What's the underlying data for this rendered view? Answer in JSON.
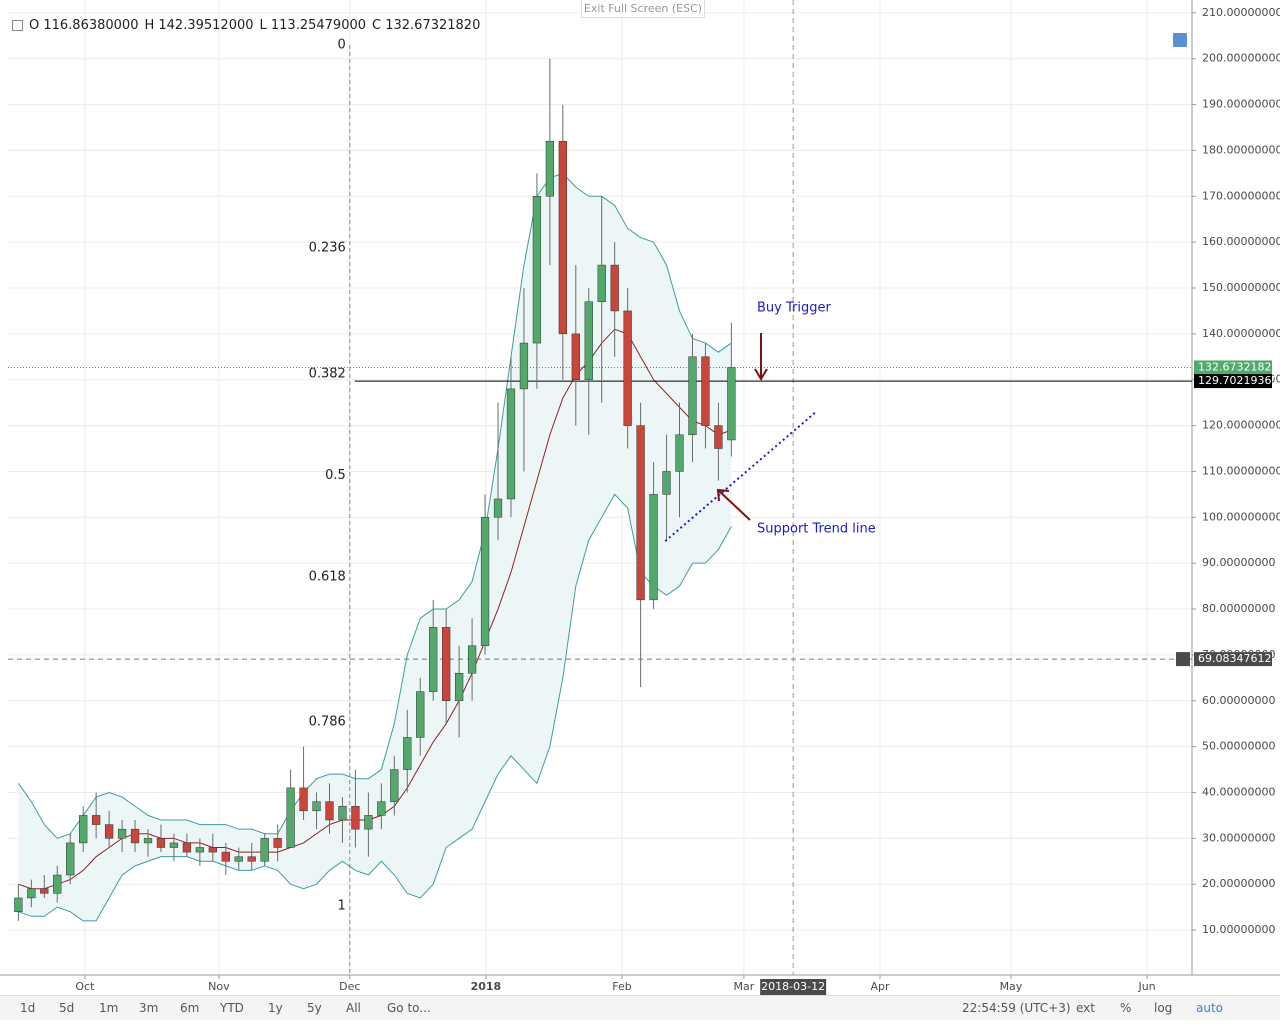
{
  "ui": {
    "exit_fullscreen": "Exit Full Screen (ESC)",
    "ranges": [
      "1d",
      "5d",
      "1m",
      "3m",
      "6m",
      "YTD",
      "1y",
      "5y",
      "All"
    ],
    "goto": "Go to...",
    "time": "22:54:59 (UTC+3)",
    "options": [
      "ext",
      "%",
      "log",
      "auto"
    ]
  },
  "chart_data": {
    "type": "candlestick",
    "header": [
      "O 116.86380000",
      "H 142.39512000",
      "L 113.25479000",
      "C 132.67321820"
    ],
    "x": [
      2.4,
      5.4,
      8.4,
      11.4,
      14.4,
      17.4,
      20.4,
      23.4,
      26.4,
      29.4,
      32.4,
      35.4,
      38.4,
      41.4,
      44.4,
      47.4,
      50.4,
      53.4,
      56.4,
      59.4,
      62.4,
      65.4,
      68.4,
      71.4,
      74.4,
      77.4,
      80.4,
      83.4,
      86.4,
      89.4,
      92.4,
      95.4,
      98.4,
      101.4,
      104.4,
      107.4,
      110.4,
      113.4,
      116.4,
      119.4,
      122.4,
      125.4,
      128.4,
      131.4,
      134.4,
      137.4,
      140.4,
      143.4,
      146.4,
      149.4,
      152.4,
      155.4,
      158.4,
      161.4,
      164.4,
      167.4
    ],
    "open": [
      14,
      17,
      19,
      18,
      22,
      29,
      35,
      33,
      30,
      32,
      29,
      30,
      28,
      29,
      27,
      28,
      27,
      25,
      26,
      25,
      30,
      28,
      41,
      36,
      38,
      34,
      37,
      32,
      35,
      38,
      45,
      52,
      62,
      76,
      60,
      66,
      72,
      100,
      104,
      128,
      138,
      170,
      182,
      140,
      130,
      147,
      155,
      145,
      120,
      82,
      105,
      110,
      118,
      135,
      120,
      116.8638
    ],
    "high": [
      20,
      21,
      22,
      24,
      31,
      37,
      40,
      36,
      34,
      34,
      32,
      33,
      31,
      31,
      30,
      31,
      29,
      28,
      29,
      31,
      33,
      45,
      50,
      40,
      42,
      39,
      45,
      40,
      42,
      48,
      58,
      65,
      82,
      80,
      72,
      78,
      105,
      125,
      135,
      150,
      175,
      200,
      190,
      155,
      150,
      170,
      160,
      150,
      125,
      112,
      118,
      125,
      140,
      138,
      125,
      142.39512
    ],
    "low": [
      12,
      15,
      17,
      16,
      20,
      27,
      30,
      28,
      27,
      27,
      26,
      27,
      25,
      26,
      24,
      25,
      22,
      23,
      23,
      24,
      25,
      28,
      34,
      32,
      31,
      29,
      28,
      26,
      32,
      35,
      40,
      48,
      60,
      55,
      52,
      60,
      70,
      95,
      100,
      110,
      128,
      155,
      130,
      120,
      118,
      125,
      135,
      115,
      63,
      80,
      95,
      100,
      112,
      115,
      108,
      113.25479
    ],
    "close": [
      17,
      19,
      18,
      22,
      29,
      35,
      33,
      30,
      32,
      29,
      30,
      28,
      29,
      27,
      28,
      27,
      25,
      26,
      25,
      30,
      28,
      41,
      36,
      38,
      34,
      37,
      32,
      35,
      38,
      45,
      52,
      62,
      76,
      60,
      66,
      72,
      100,
      104,
      128,
      138,
      170,
      182,
      140,
      130,
      147,
      155,
      145,
      120,
      82,
      105,
      110,
      118,
      135,
      120,
      115,
      132.6732182
    ],
    "up_color": "#53a86b",
    "down_color": "#c9463d",
    "wick_color": "#6b6b6b",
    "bollinger": {
      "band_color": "#3e9c9c",
      "middle_color": "#8b2323",
      "fill": "#edf6f6",
      "upper": [
        42,
        38,
        33,
        30,
        31,
        35,
        39,
        40,
        39,
        37,
        35,
        34,
        34,
        34,
        33,
        33,
        33,
        32,
        32,
        31,
        31,
        36,
        40,
        43,
        44,
        44,
        43,
        43,
        45,
        55,
        70,
        78,
        80,
        80,
        82,
        86,
        97,
        115,
        135,
        155,
        170,
        174,
        175,
        172,
        170,
        170,
        168,
        163,
        161,
        160,
        155,
        145,
        139,
        138,
        136,
        138
      ],
      "middle": [
        20,
        19,
        19,
        20,
        21,
        23,
        26,
        28,
        30,
        31,
        31,
        30,
        30,
        29,
        29,
        28,
        28,
        27,
        27,
        27,
        27,
        28,
        29,
        31,
        33,
        34,
        34,
        34,
        35,
        37,
        41,
        46,
        51,
        55,
        60,
        66,
        73,
        80,
        88,
        98,
        108,
        118,
        126,
        131,
        134,
        138,
        141,
        140,
        135,
        130,
        127,
        124,
        121,
        120,
        118,
        119
      ],
      "lower": [
        14,
        13,
        13,
        15,
        14,
        12,
        12,
        17,
        22,
        24,
        25,
        26,
        26,
        26,
        25,
        25,
        24,
        23,
        23,
        24,
        23,
        20,
        19,
        20,
        23,
        25,
        23,
        22,
        25,
        22,
        18,
        17,
        20,
        28,
        30,
        32,
        38,
        44,
        48,
        45,
        42,
        50,
        65,
        85,
        95,
        100,
        105,
        102,
        88,
        85,
        83,
        85,
        90,
        90,
        93,
        98
      ]
    },
    "xlim": [
      0,
      274
    ],
    "xticks": [
      {
        "value": 17.8,
        "label": "Oct"
      },
      {
        "value": 48.8,
        "label": "Nov"
      },
      {
        "value": 79.1,
        "label": "Dec"
      },
      {
        "value": 110.6,
        "label": "2018"
      },
      {
        "value": 142.1,
        "label": "Feb"
      },
      {
        "value": 170.3,
        "label": "Mar"
      },
      {
        "value": 201.8,
        "label": "Apr"
      },
      {
        "value": 232.1,
        "label": "May"
      },
      {
        "value": 263.6,
        "label": "Jun"
      }
    ],
    "ylim": [
      0.2,
      212.8
    ],
    "yticks": [
      {
        "value": 10,
        "label": "10.00000000"
      },
      {
        "value": 20,
        "label": "20.00000000"
      },
      {
        "value": 30,
        "label": "30.00000000"
      },
      {
        "value": 40,
        "label": "40.00000000"
      },
      {
        "value": 50,
        "label": "50.00000000"
      },
      {
        "value": 60,
        "label": "60.00000000"
      },
      {
        "value": 70,
        "label": "70.00000000"
      },
      {
        "value": 80,
        "label": "80.00000000"
      },
      {
        "value": 90,
        "label": "90.00000000"
      },
      {
        "value": 100,
        "label": "100.00000000"
      },
      {
        "value": 110,
        "label": "110.00000000"
      },
      {
        "value": 120,
        "label": "120.00000000"
      },
      {
        "value": 130,
        "label": "130.00000000"
      },
      {
        "value": 140,
        "label": "140.00000000"
      },
      {
        "value": 150,
        "label": "150.00000000"
      },
      {
        "value": 160,
        "label": "160.00000000"
      },
      {
        "value": 170,
        "label": "170.00000000"
      },
      {
        "value": 180,
        "label": "180.00000000"
      },
      {
        "value": 190,
        "label": "190.00000000"
      },
      {
        "value": 200,
        "label": "200.00000000"
      },
      {
        "value": 210,
        "label": "210.00000000"
      }
    ],
    "grid": true,
    "price_labels": [
      {
        "value": 132.6732182,
        "label": "132.67321820",
        "color": "#53a86b",
        "line": "dotted"
      },
      {
        "value": 129.70219361,
        "label": "129.70219361",
        "color": "#000000",
        "line": "solid"
      },
      {
        "value": 69.08347612,
        "label": "69.08347612",
        "color": "#4a4a4a",
        "line": "dashed"
      }
    ],
    "crosshair": {
      "x": 181.7,
      "label": "2018-03-12"
    },
    "fibonacci": {
      "x": 79.1,
      "price_high": 203,
      "price_low": 15.2,
      "levels": [
        0,
        0.236,
        0.382,
        0.5,
        0.618,
        0.786,
        1
      ]
    },
    "trend_line": {
      "x": [
        152.1,
        187
      ],
      "y": [
        94.8,
        123
      ],
      "color": "#1a1acc"
    },
    "annotations": [
      "Buy Trigger",
      "Support Trend line"
    ],
    "annotation_color": "#1a1acc"
  }
}
